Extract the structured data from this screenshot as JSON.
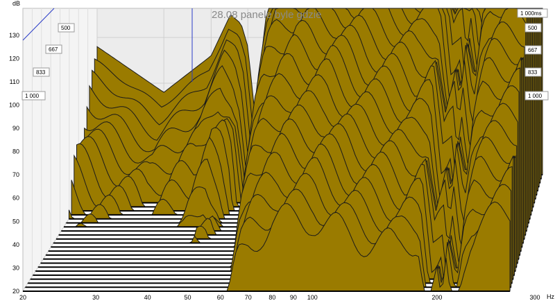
{
  "chart_data": {
    "type": "area",
    "title": "28.08 panele byle gdzie",
    "y_unit_label": "dB",
    "x_unit_label": "Hz",
    "x_scale": "log",
    "xlim": [
      20,
      300
    ],
    "ylim": [
      20,
      135
    ],
    "x_ticks": [
      "20",
      "30",
      "40",
      "50",
      "60",
      "70",
      "80",
      "90",
      "100",
      "200",
      "300"
    ],
    "y_ticks": [
      "20",
      "30",
      "40",
      "50",
      "60",
      "70",
      "80",
      "90",
      "100",
      "110",
      "120",
      "130"
    ],
    "time_labels_left": [
      "500",
      "667",
      "833",
      "1 000"
    ],
    "time_labels_right": [
      "1 000ms",
      "500",
      "667",
      "833",
      "1 000"
    ],
    "slices": 30,
    "front_slice_profile": {
      "hz": [
        20,
        30,
        40,
        45,
        48,
        50,
        53,
        56,
        60,
        63,
        66,
        70,
        75,
        80,
        90,
        100,
        110,
        120,
        140,
        160,
        180,
        190,
        200,
        205,
        210,
        220,
        230,
        240,
        250,
        270,
        300
      ],
      "db": [
        48,
        38,
        46,
        55,
        53,
        48,
        28,
        44,
        68,
        82,
        90,
        94,
        97,
        99,
        99,
        100,
        98,
        96,
        95,
        93,
        96,
        80,
        86,
        78,
        88,
        76,
        90,
        96,
        98,
        99,
        101
      ]
    },
    "decay_db_per_slice": 2.2,
    "fill_color": "#9a7b00",
    "wall_color": "#ececec",
    "grid_color": "#cfcfcf",
    "marker_color": "#2a3cc8"
  }
}
